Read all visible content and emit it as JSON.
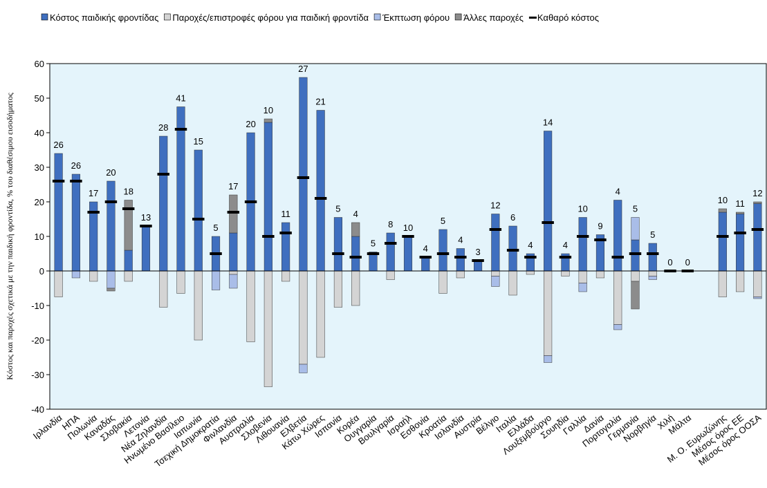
{
  "chart_data": {
    "type": "bar",
    "y_label": "Κόστος και παροχές σχετικά με την παιδική φροντίδα, % του διαθέσιμου εισοδήματος",
    "categories": [
      "Ιρλανδία",
      "ΗΠΑ",
      "Πολωνία",
      "Καναδάς",
      "Σλοβακία",
      "Λετονία",
      "Νέα Ζηλανδία",
      "Ηνωμένο Βασίλειο",
      "Ιαπωνία",
      "Τσεχική Δημοκρατία",
      "Φινλανδία",
      "Αυστραλία",
      "Σλοβενία",
      "Λιθουανία",
      "Ελβετία",
      "Κάτω Χώρες",
      "Ισπανία",
      "Κορέα",
      "Ουγγαρία",
      "Βουλγαρία",
      "Ισραήλ",
      "Εσθονία",
      "Κροατία",
      "Ισλανδία",
      "Αυστρία",
      "Βέλγιο",
      "Ιταλία",
      "Ελλάδα",
      "Λουξεμβούργο",
      "Σουηδία",
      "Γαλλία",
      "Δανία",
      "Πορτογαλία",
      "Γερμανία",
      "Νορβηγία",
      "Χιλή",
      "Μάλτα",
      null,
      "Μ. Ο. Ευρωζώνης",
      "Μέσος όρος ΕΕ",
      "Μέσος όρος ΟΟΣΑ"
    ],
    "series": [
      {
        "name": "Κόστος παιδικής φροντίδας",
        "color": "#3f6fbf",
        "style": "bar",
        "values": [
          34,
          28,
          20,
          26,
          6,
          13,
          39,
          47.5,
          35,
          10,
          11,
          40,
          43,
          14,
          56,
          46.5,
          15.5,
          10,
          5.5,
          11,
          10,
          4,
          12,
          6.5,
          2.8,
          16.5,
          13,
          5,
          40.5,
          5,
          15.5,
          10.5,
          20.5,
          9,
          8,
          0,
          0,
          null,
          17,
          16.5,
          19.5
        ]
      },
      {
        "name": "Παροχές/επιστροφές φόρου για παιδική φροντίδα",
        "color": "#d4d4d4",
        "style": "bar",
        "values": [
          -7.5,
          0,
          -3,
          0,
          -3,
          0,
          -10.5,
          -6.5,
          -20,
          0,
          -1,
          -20.5,
          -33.5,
          -3,
          -27,
          -25,
          -10.5,
          -10,
          0,
          -2.5,
          0,
          0,
          -6.5,
          -2,
          0,
          -1.5,
          -7,
          -1,
          -24.5,
          -1.5,
          -3.5,
          -2,
          -15.5,
          -3,
          -1.5,
          0,
          0,
          null,
          -7.5,
          -6,
          -7.5
        ]
      },
      {
        "name": "Έκπτωση φόρου",
        "color": "#a9bde8",
        "style": "bar",
        "values": [
          0,
          -2,
          0,
          -5,
          0,
          0,
          0,
          0,
          0,
          -5.5,
          -4,
          0,
          0,
          0,
          -2.5,
          0,
          0,
          0,
          0,
          0,
          0,
          0,
          0,
          0,
          0,
          -3,
          0,
          0,
          -2,
          0,
          -2.5,
          0,
          -1.5,
          6.5,
          -1,
          0,
          0,
          null,
          0,
          0,
          -0.5
        ]
      },
      {
        "name": "Άλλες παροχές",
        "color": "#8c8c8c",
        "style": "bar",
        "values": [
          0,
          0,
          0,
          -0.8,
          14.5,
          0,
          0,
          0,
          0,
          0,
          11,
          0,
          1,
          0,
          0,
          0,
          0,
          4,
          0,
          0,
          0,
          0,
          0,
          0,
          0,
          0,
          0,
          0,
          0,
          0,
          0,
          0,
          0,
          -8,
          0,
          0,
          0,
          null,
          1,
          0.5,
          0.5
        ]
      },
      {
        "name": "Καθαρό κόστος",
        "color": "#000000",
        "style": "dash",
        "values": [
          26,
          26,
          17,
          20,
          18,
          13,
          28,
          41,
          15,
          5,
          17,
          20,
          10,
          11,
          27,
          21,
          5,
          4,
          5,
          8,
          10,
          4,
          5,
          4,
          3,
          12,
          6,
          4,
          14,
          4,
          10,
          9,
          4,
          5,
          5,
          0,
          0,
          null,
          10,
          11,
          12
        ]
      }
    ],
    "ylim": [
      -40,
      60
    ],
    "yticks": [
      -40,
      -30,
      -20,
      -10,
      0,
      10,
      20,
      30,
      40,
      50,
      60
    ],
    "background": "#e4f4fb"
  }
}
